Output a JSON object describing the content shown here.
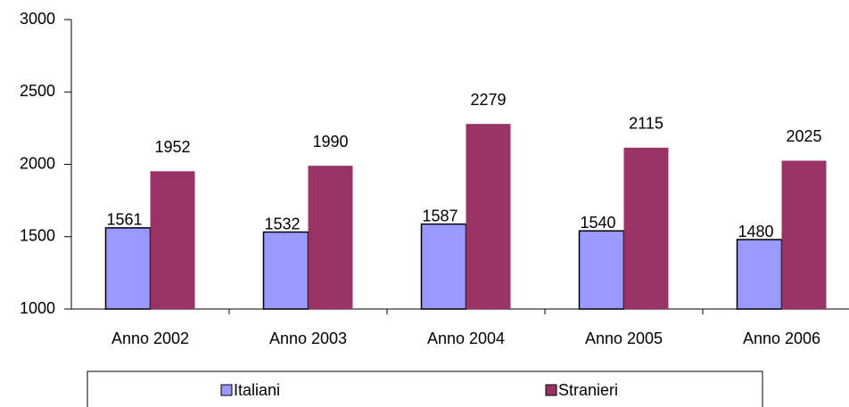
{
  "chart_data": {
    "type": "bar",
    "categories": [
      "Anno 2002",
      "Anno 2003",
      "Anno 2004",
      "Anno 2005",
      "Anno 2006"
    ],
    "series": [
      {
        "name": "Italiani",
        "color": "#9999ff",
        "values": [
          1561,
          1532,
          1587,
          1540,
          1480
        ]
      },
      {
        "name": "Stranieri",
        "color": "#993366",
        "values": [
          1952,
          1990,
          2279,
          2115,
          2025
        ]
      }
    ],
    "ylim": [
      1000,
      3000
    ],
    "yticks": [
      1000,
      1500,
      2000,
      2500,
      3000
    ],
    "grid": false,
    "legend": "bottom"
  }
}
